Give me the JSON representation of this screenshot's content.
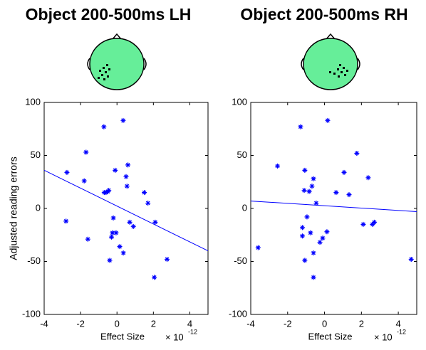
{
  "chart_data": [
    {
      "type": "scatter",
      "title": "Object 200-500ms LH",
      "xlabel": "Effect Size",
      "ylabel": "Adjusted reading errors",
      "x_offset_base": "× 10",
      "x_offset_exponent": "-12",
      "x": [
        -0.72,
        0.34,
        -1.7,
        -2.75,
        0.6,
        -0.1,
        0.5,
        -1.8,
        0.55,
        -0.5,
        -0.6,
        -0.7,
        -0.45,
        1.5,
        1.7,
        -2.8,
        -0.2,
        0.7,
        0.9,
        2.1,
        -0.25,
        -0.05,
        -0.3,
        -1.6,
        0.15,
        0.35,
        2.75,
        -0.4,
        2.05
      ],
      "values": [
        77,
        83,
        53,
        34,
        41,
        36,
        30,
        26,
        21,
        16,
        15,
        15,
        17,
        15,
        5,
        -12,
        -9,
        -13,
        -17,
        -13,
        -23,
        -23,
        -27,
        -29,
        -36,
        -42,
        -48,
        -49,
        -65
      ],
      "color": "#0000ff",
      "fit": {
        "x": [
          -4,
          5
        ],
        "y": [
          36,
          -40
        ]
      },
      "xlim": [
        -4,
        5
      ],
      "ylim": [
        -100,
        100
      ],
      "xticks": [
        -4,
        -2,
        0,
        2,
        4
      ],
      "yticks": [
        -100,
        -50,
        0,
        50,
        100
      ]
    },
    {
      "type": "scatter",
      "title": "Object 200-500ms RH",
      "xlabel": "Effect Size",
      "x_offset_base": "× 10",
      "x_offset_exponent": "-12",
      "x": [
        -1.3,
        0.17,
        1.75,
        -2.55,
        -1.07,
        1.06,
        -0.6,
        2.37,
        -0.68,
        -1.1,
        -0.83,
        0.63,
        1.33,
        -0.45,
        -0.95,
        0.13,
        2.7,
        2.6,
        2.1,
        -1.2,
        -1.2,
        -0.1,
        -0.76,
        -3.6,
        -0.25,
        -0.6,
        -1.07,
        4.7,
        -0.6
      ],
      "values": [
        77,
        83,
        52,
        40,
        36,
        34,
        28,
        29,
        21,
        17,
        16,
        15,
        13,
        5,
        -8,
        -22,
        -13,
        -15,
        -15,
        -18,
        -26,
        -28,
        -23,
        -37,
        -32,
        -42,
        -49,
        -48,
        -65
      ],
      "color": "#0000ff",
      "fit": {
        "x": [
          -4,
          5
        ],
        "y": [
          7,
          -3
        ]
      },
      "xlim": [
        -4,
        5
      ],
      "ylim": [
        -100,
        100
      ],
      "xticks": [
        -4,
        -2,
        0,
        2,
        4
      ],
      "yticks": [
        -100,
        -50,
        0,
        50,
        100
      ]
    }
  ]
}
